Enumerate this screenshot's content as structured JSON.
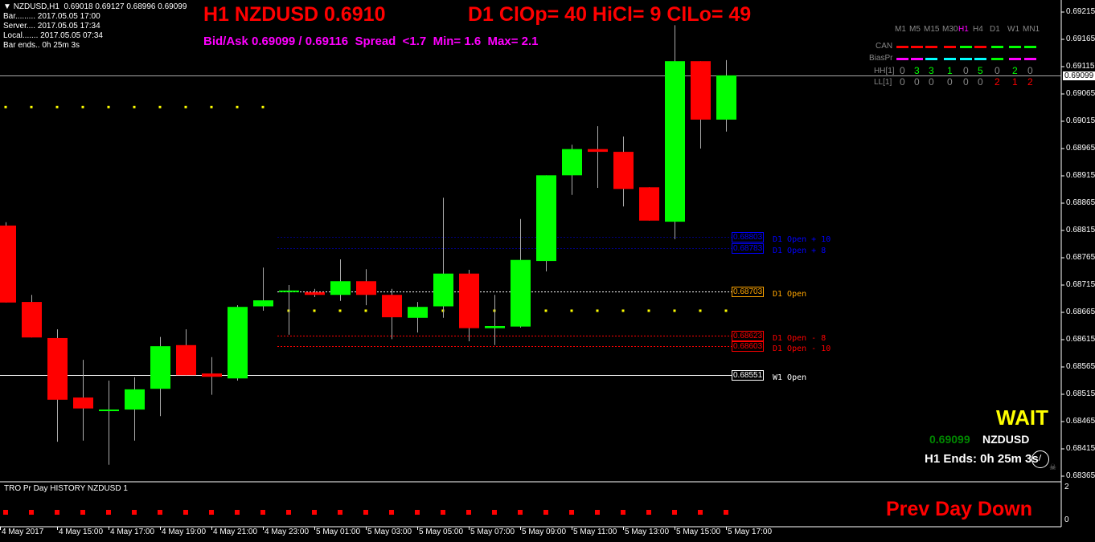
{
  "header": {
    "symbol_line": "NZDUSD,H1  0.69018 0.69127 0.68996 0.69099",
    "bar": "Bar......... 2017.05.05 17:00",
    "server": "Server.... 2017.05.05 17:34",
    "local": "Local....... 2017.05.05 07:34",
    "bar_ends": "Bar ends.. 0h 25m 3s",
    "title": "H1 NZDUSD 0.6910",
    "d1_stats": "D1 ClOp= 40 HiCl= 9 ClLo= 49",
    "bidask": "Bid/Ask 0.69099 / 0.69116  Spread  <1.7  Min= 1.6  Max= 2.1"
  },
  "mtf_panel": {
    "timeframes": [
      "M1",
      "M5",
      "M15",
      "M30",
      "H1",
      "H4",
      "D1",
      "W1",
      "MN1"
    ],
    "active": "H1",
    "rows": [
      {
        "label": "CAN",
        "colors": [
          "#ff0000",
          "#ff0000",
          "#ff0000",
          "#ff0000",
          "#00ff00",
          "#ff0000",
          "#00ff00",
          "#00ff00",
          "#00ff00"
        ]
      },
      {
        "label": "BiasPr",
        "colors": [
          "#ff00ff",
          "#ff00ff",
          "#00ffff",
          "#00ffff",
          "#00ffff",
          "#00ffff",
          "#00ff00",
          "#ff00ff",
          "#ff00ff"
        ]
      }
    ],
    "hh_label": "HH[1]",
    "hh": [
      "0",
      "3",
      "3",
      "1",
      "0",
      "5",
      "0",
      "2",
      "0"
    ],
    "ll_label": "LL[1]",
    "ll": [
      "0",
      "0",
      "0",
      "0",
      "0",
      "0",
      "2",
      "1",
      "2"
    ]
  },
  "levels": [
    {
      "price": "0.68803",
      "label": "D1 Open + 10",
      "color": "#0000ff"
    },
    {
      "price": "0.68783",
      "label": "D1 Open + 8",
      "color": "#0000ff"
    },
    {
      "price": "0.68703",
      "label": "D1 Open",
      "color": "#ffa500"
    },
    {
      "price": "0.68623",
      "label": "D1 Open - 8",
      "color": "#ff0000"
    },
    {
      "price": "0.68603",
      "label": "D1 Open - 10",
      "color": "#ff0000"
    },
    {
      "price": "0.68551",
      "label": "W1 Open",
      "color": "#ffffff"
    }
  ],
  "current_price": "0.69099",
  "price_axis": [
    "0.69215",
    "0.69165",
    "0.69115",
    "0.69065",
    "0.69015",
    "0.68965",
    "0.68915",
    "0.68865",
    "0.68815",
    "0.68765",
    "0.68715",
    "0.68665",
    "0.68615",
    "0.68565",
    "0.68515",
    "0.68465",
    "0.68415",
    "0.68365"
  ],
  "time_axis": [
    "4 May 2017",
    "4 May 15:00",
    "4 May 17:00",
    "4 May 19:00",
    "4 May 21:00",
    "4 May 23:00",
    "5 May 01:00",
    "5 May 03:00",
    "5 May 05:00",
    "5 May 07:00",
    "5 May 09:00",
    "5 May 11:00",
    "5 May 13:00",
    "5 May 15:00",
    "5 May 17:00"
  ],
  "candles": [
    [
      0.68824,
      0.6883,
      0.68683,
      0.68683
    ],
    [
      0.68684,
      0.68697,
      0.68619,
      0.68619
    ],
    [
      0.68618,
      0.68634,
      0.68428,
      0.68505
    ],
    [
      0.68509,
      0.68578,
      0.6843,
      0.68489
    ],
    [
      0.68486,
      0.6854,
      0.68386,
      0.68487
    ],
    [
      0.68487,
      0.68546,
      0.6843,
      0.68524
    ],
    [
      0.68525,
      0.6862,
      0.68475,
      0.68603
    ],
    [
      0.68605,
      0.68634,
      0.6855,
      0.6855
    ],
    [
      0.68553,
      0.68583,
      0.68514,
      0.68547
    ],
    [
      0.68544,
      0.68678,
      0.6854,
      0.68675
    ],
    [
      0.68676,
      0.68747,
      0.68668,
      0.68687
    ],
    [
      0.68704,
      0.68715,
      0.68624,
      0.68705
    ],
    [
      0.68702,
      0.68708,
      0.68693,
      0.68697
    ],
    [
      0.68697,
      0.68762,
      0.68686,
      0.68722
    ],
    [
      0.68722,
      0.68744,
      0.68678,
      0.68697
    ],
    [
      0.68697,
      0.68708,
      0.68616,
      0.68656
    ],
    [
      0.68655,
      0.68684,
      0.68628,
      0.68675
    ],
    [
      0.68676,
      0.68875,
      0.68655,
      0.68736
    ],
    [
      0.68736,
      0.68743,
      0.68612,
      0.68636
    ],
    [
      0.68636,
      0.68697,
      0.68605,
      0.6864
    ],
    [
      0.68639,
      0.68836,
      0.68637,
      0.68761
    ],
    [
      0.68759,
      0.68916,
      0.6874,
      0.68916
    ],
    [
      0.68916,
      0.68972,
      0.6888,
      0.68964
    ],
    [
      0.68964,
      0.69006,
      0.68893,
      0.68959
    ],
    [
      0.68959,
      0.68987,
      0.68859,
      0.68891
    ],
    [
      0.68894,
      0.68894,
      0.68833,
      0.68833
    ],
    [
      0.68831,
      0.69191,
      0.68799,
      0.69125
    ],
    [
      0.69125,
      0.69125,
      0.68965,
      0.69018
    ],
    [
      0.69018,
      0.69127,
      0.68996,
      0.69099
    ]
  ],
  "colors": {
    "bull": "#00ff00",
    "bear": "#ff0000",
    "dots": "#ffff00"
  },
  "dots_upper": {
    "price": 0.69041,
    "from": 0,
    "to": 10
  },
  "dots_lower": {
    "price": 0.68668,
    "from": 11,
    "to": 28
  },
  "signal": {
    "wait": "WAIT",
    "price": "0.69099",
    "symbol": "NZDUSD",
    "ends": "H1 Ends: 0h 25m 3s"
  },
  "subwindow": {
    "title": "TRO Pr Day HISTORY NZDUSD 1",
    "status": "Prev Day Down",
    "axis": [
      "2",
      "0"
    ],
    "color": "#ff0000"
  }
}
